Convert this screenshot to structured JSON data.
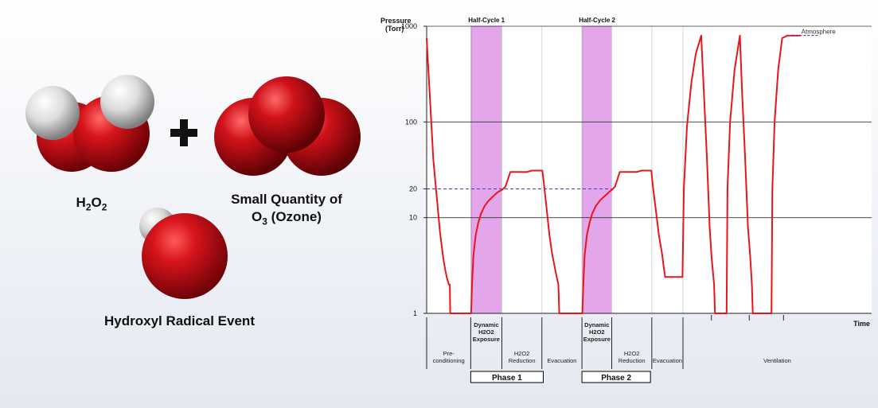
{
  "left_panel": {
    "h2o2_label": {
      "main": "H",
      "sub1": "2",
      "mid": "O",
      "sub2": "2"
    },
    "ozone_line1": "Small Quantity of",
    "ozone_line2": {
      "main": "O",
      "sub": "3",
      "rest": " (Ozone)"
    },
    "hydroxyl_label": "Hydroxyl Radical Event",
    "colors": {
      "oxygen": "#c8121b",
      "hydrogen": "#e8e8e8",
      "plus": "#111111"
    }
  },
  "chart_data": {
    "type": "line",
    "ylabel": "Pressure\n(Torr)",
    "xlabel": "Time",
    "yscale": "log",
    "ylim": [
      1,
      1000
    ],
    "yticks": [
      1,
      10,
      20,
      100,
      1000
    ],
    "gridlines": [
      10,
      100,
      1000
    ],
    "reference_line": {
      "value": 20,
      "style": "dashed",
      "color": "#4040d0"
    },
    "x_range": [
      0,
      100
    ],
    "highlight_bands": [
      {
        "label": "Half-Cycle 1",
        "x": [
          10.0,
          16.9
        ],
        "color": "#e3a6ea"
      },
      {
        "label": "Half-Cycle 2",
        "x": [
          35.0,
          41.6
        ],
        "color": "#e3a6ea"
      }
    ],
    "annotation": {
      "text": "Atmosphere",
      "y": 800
    },
    "series": [
      {
        "color": "#e8161c",
        "points": [
          [
            0,
            750
          ],
          [
            1.5,
            40
          ],
          [
            3,
            7
          ],
          [
            3.4,
            5
          ],
          [
            3.8,
            3.6
          ],
          [
            4.2,
            2.8
          ],
          [
            4.6,
            2.3
          ],
          [
            5.0,
            2
          ],
          [
            5.2,
            2
          ],
          [
            5.3,
            1
          ],
          [
            9.9,
            1
          ],
          [
            10,
            1
          ],
          [
            10.2,
            2
          ],
          [
            10.5,
            4
          ],
          [
            11,
            6.5
          ],
          [
            11.6,
            8.8
          ],
          [
            12.2,
            11
          ],
          [
            13,
            13.2
          ],
          [
            14,
            15.2
          ],
          [
            15,
            16.8
          ],
          [
            16,
            18.5
          ],
          [
            16.9,
            19.5
          ],
          [
            17.7,
            21
          ],
          [
            18.8,
            30
          ],
          [
            22.5,
            30
          ],
          [
            23.6,
            31
          ],
          [
            26,
            31
          ],
          [
            26.3,
            24
          ],
          [
            27,
            12
          ],
          [
            27.6,
            6.5
          ],
          [
            28.2,
            4.2
          ],
          [
            28.8,
            3
          ],
          [
            29.3,
            2.3
          ],
          [
            29.6,
            2
          ],
          [
            29.8,
            1
          ],
          [
            34.9,
            1
          ],
          [
            35,
            1
          ],
          [
            35.2,
            2
          ],
          [
            35.5,
            4
          ],
          [
            36,
            6.5
          ],
          [
            36.6,
            8.8
          ],
          [
            37.2,
            11
          ],
          [
            38,
            13.2
          ],
          [
            39,
            15.2
          ],
          [
            40,
            16.8
          ],
          [
            41,
            18.5
          ],
          [
            41.6,
            19.5
          ],
          [
            42.3,
            21
          ],
          [
            43.4,
            30
          ],
          [
            47.2,
            30
          ],
          [
            48.3,
            31
          ],
          [
            50.5,
            31
          ],
          [
            50.8,
            22
          ],
          [
            51.5,
            12
          ],
          [
            52.2,
            6.5
          ],
          [
            52.9,
            4.2
          ],
          [
            53.3,
            3
          ],
          [
            53.6,
            2.4
          ],
          [
            57.5,
            2.4
          ],
          [
            57.8,
            20
          ],
          [
            58.5,
            90
          ],
          [
            59.5,
            260
          ],
          [
            60.5,
            520
          ],
          [
            61.7,
            800
          ],
          [
            62.3,
            200
          ],
          [
            63,
            40
          ],
          [
            63.6,
            8
          ],
          [
            64,
            4
          ],
          [
            64.6,
            2
          ],
          [
            64.8,
            1
          ],
          [
            67.4,
            1
          ],
          [
            67.6,
            20
          ],
          [
            68.2,
            100
          ],
          [
            69.2,
            350
          ],
          [
            70.4,
            800
          ],
          [
            70.9,
            200
          ],
          [
            71.6,
            40
          ],
          [
            72.2,
            8
          ],
          [
            72.7,
            4
          ],
          [
            73.1,
            2
          ],
          [
            73.3,
            1
          ],
          [
            77.5,
            1
          ],
          [
            77.7,
            20
          ],
          [
            78.2,
            100
          ],
          [
            79,
            350
          ],
          [
            79.9,
            750
          ],
          [
            81,
            800
          ],
          [
            84,
            800
          ]
        ]
      }
    ],
    "top_labels": [
      "Half-Cycle 1",
      "Half-Cycle 2"
    ],
    "segments": [
      {
        "id": "pre",
        "lines": [
          "Pre-",
          "conditioning"
        ],
        "bold": false,
        "x": [
          0,
          9.9
        ]
      },
      {
        "id": "dyn1",
        "lines": [
          "Dynamic",
          "H2O2",
          "Exposure"
        ],
        "bold": true,
        "x": [
          9.9,
          16.9
        ]
      },
      {
        "id": "red1",
        "lines": [
          "H2O2",
          "Reduction"
        ],
        "bold": false,
        "x": [
          16.9,
          25.9
        ]
      },
      {
        "id": "evac1",
        "lines": [
          "Evacuation"
        ],
        "bold": false,
        "x": [
          25.9,
          34.9
        ]
      },
      {
        "id": "dyn2",
        "lines": [
          "Dynamic",
          "H2O2",
          "Exposure"
        ],
        "bold": true,
        "x": [
          34.9,
          41.6
        ]
      },
      {
        "id": "red2",
        "lines": [
          "H2O2",
          "Reduction"
        ],
        "bold": false,
        "x": [
          41.6,
          50.6
        ]
      },
      {
        "id": "evac2",
        "lines": [
          "Evacuation"
        ],
        "bold": false,
        "x": [
          50.6,
          57.6
        ]
      },
      {
        "id": "vent",
        "lines": [
          "Ventilation"
        ],
        "bold": false,
        "x": [
          57.6,
          100
        ]
      }
    ],
    "phases": [
      {
        "label": "Phase 1",
        "x": [
          9.9,
          26.2
        ]
      },
      {
        "label": "Phase 2",
        "x": [
          34.9,
          50.3
        ]
      }
    ]
  }
}
